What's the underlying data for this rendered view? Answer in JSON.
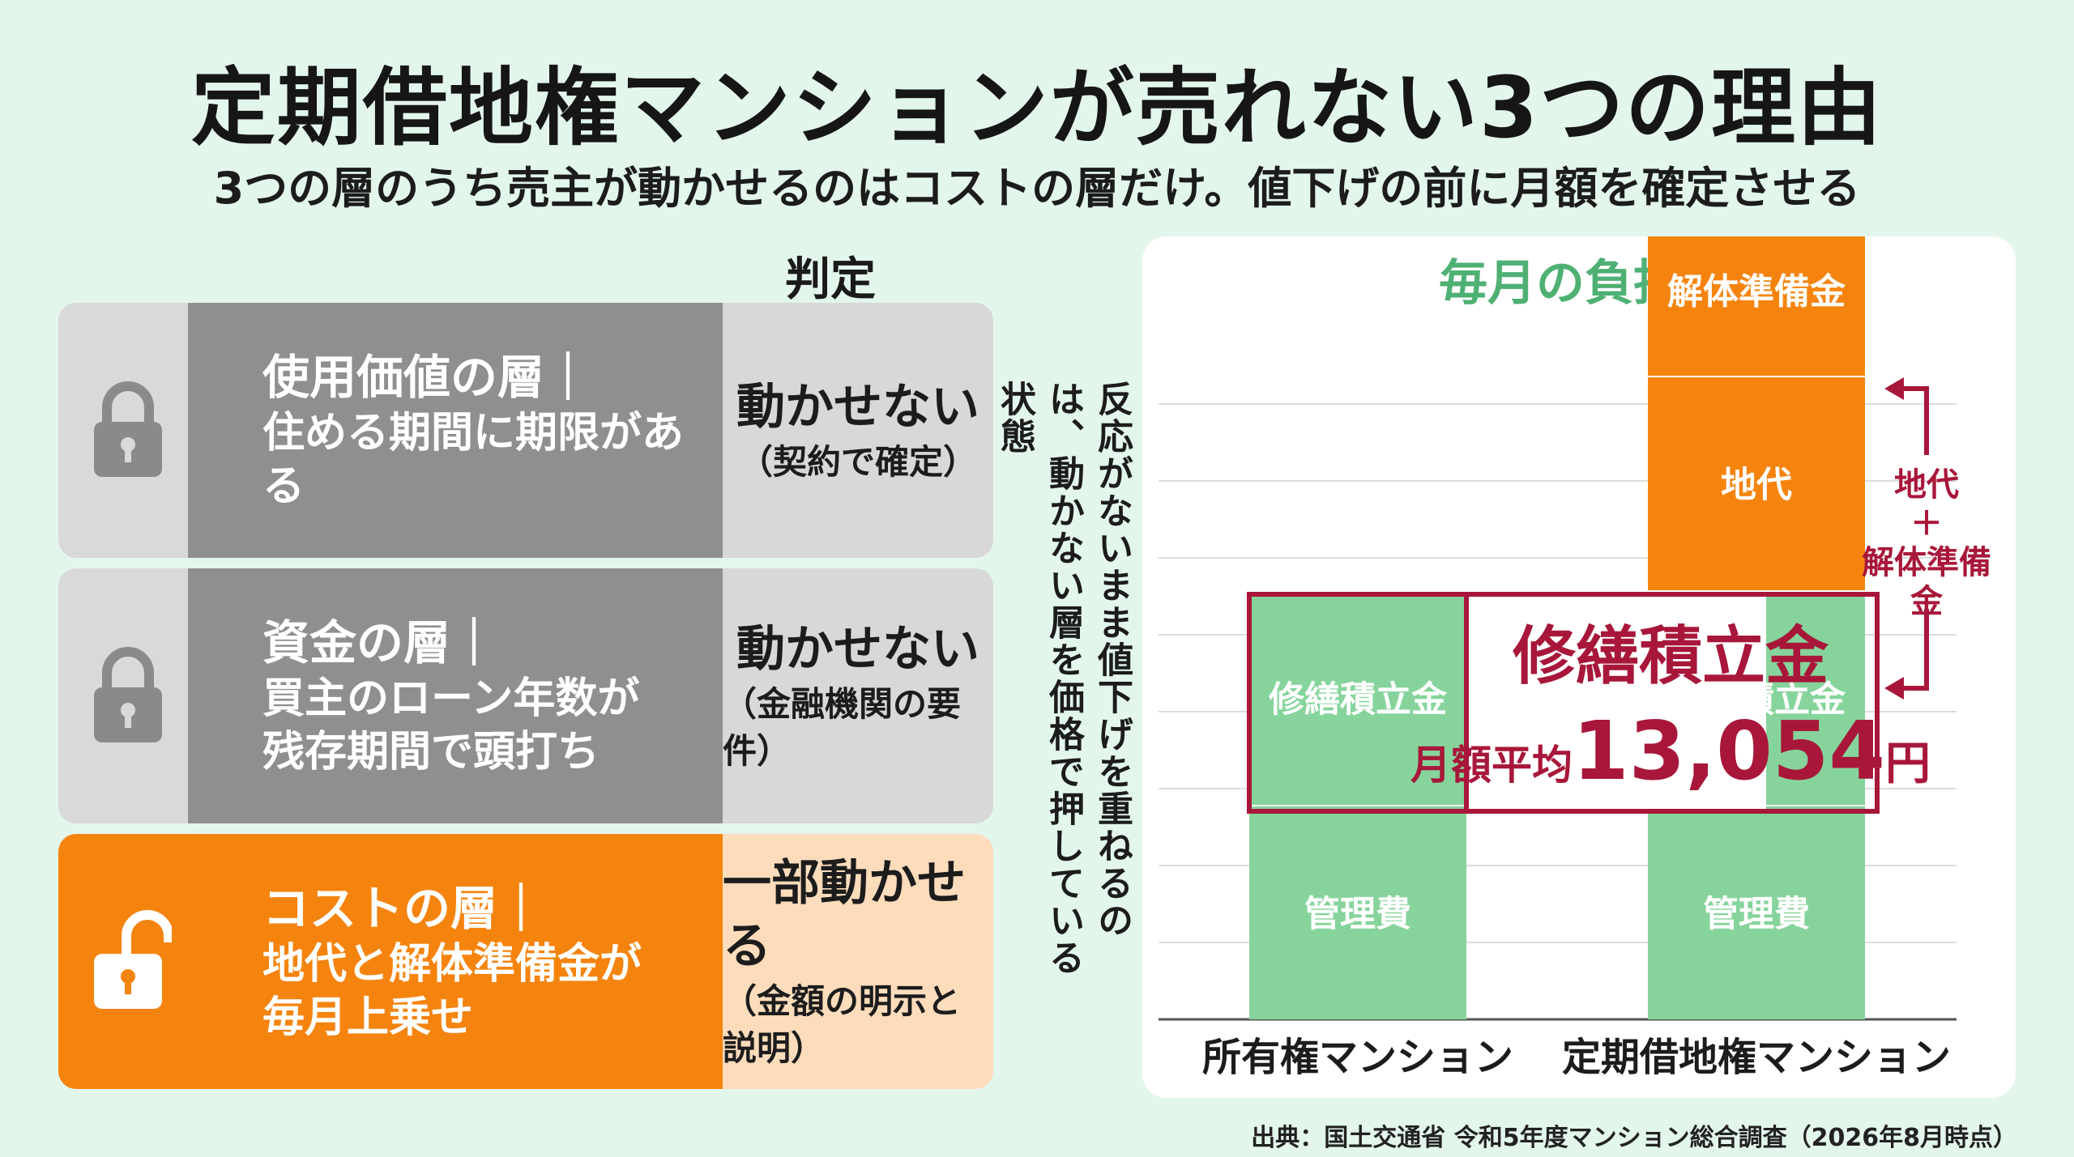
{
  "title": "定期借地権マンションが売れない3つの理由",
  "subtitle": "3つの層のうち売主が動かせるのはコストの層だけ。値下げの前に月額を確定させる",
  "judgment_heading": "判定",
  "layers": [
    {
      "title": "使用価値の層｜",
      "desc": [
        "住める期間に期限がある"
      ],
      "judgment": "動かせない",
      "note": "（契約で確定）",
      "icon": "lock-icon"
    },
    {
      "title": "資金の層｜",
      "desc": [
        "買主のローン年数が",
        "残存期間で頭打ち"
      ],
      "judgment": "動かせない",
      "note": "（金融機関の要件）",
      "icon": "lock-icon"
    },
    {
      "title": "コストの層｜",
      "desc": [
        "地代と解体準備金が",
        "毎月上乗せ"
      ],
      "judgment": "一部動かせる",
      "note": "（金額の明示と説明）",
      "icon": "unlock-icon"
    }
  ],
  "vertical_note": "反応がないまま値下げを重ねるのは、動かない層を価格で押している状態",
  "chart_data": {
    "type": "bar",
    "title": "毎月の負担",
    "categories": [
      "所有権マンション",
      "定期借地権マンション"
    ],
    "series": [
      {
        "name": "管理費",
        "values": [
          1,
          1
        ]
      },
      {
        "name": "修繕積立金",
        "values": [
          1,
          1
        ]
      },
      {
        "name": "地代",
        "values": [
          0,
          1
        ]
      },
      {
        "name": "解体準備金",
        "values": [
          0,
          0.8
        ]
      }
    ],
    "grid": true,
    "colors": {
      "管理費": "#86d49c",
      "修繕積立金": "#86d49c",
      "地代": "#f5840f",
      "解体準備金": "#f5840f",
      "accent": "#a8173a"
    },
    "highlight": {
      "label": "修繕積立金",
      "prefix": "月額平均",
      "amount": "13,054",
      "unit": "円"
    },
    "bracket_label": "地代\n＋\n解体準備\n金"
  },
  "source": "出典：国土交通省 令和5年度マンション総合調査（2026年8月時点）"
}
